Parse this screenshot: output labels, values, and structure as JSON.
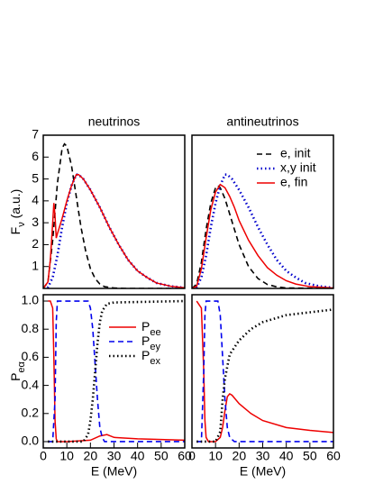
{
  "chart_data": [
    {
      "type": "line",
      "title": "neutrinos",
      "ylabel": "Fν (a.u.)",
      "xlim": [
        0,
        60
      ],
      "ylim": [
        0,
        7
      ],
      "yticks": [
        1,
        2,
        3,
        4,
        5,
        6,
        7
      ],
      "series": [
        {
          "name": "e, init",
          "color": "#000000",
          "dash": "dashed",
          "x": [
            0,
            2,
            4,
            6,
            8,
            9,
            10,
            12,
            14,
            16,
            18,
            20,
            22,
            24,
            26,
            30,
            35,
            40,
            60
          ],
          "values": [
            0,
            0.3,
            2.2,
            4.8,
            6.4,
            6.6,
            6.5,
            5.6,
            4.2,
            2.8,
            1.7,
            0.9,
            0.45,
            0.2,
            0.08,
            0.02,
            0,
            0,
            0
          ]
        },
        {
          "name": "x,y init",
          "color": "#0000cc",
          "dash": "dotted",
          "x": [
            0,
            2,
            4,
            6,
            8,
            10,
            12,
            14,
            15,
            17,
            20,
            24,
            28,
            32,
            36,
            40,
            44,
            48,
            54,
            60
          ],
          "values": [
            0,
            0.05,
            0.5,
            1.5,
            2.8,
            3.9,
            4.7,
            5.2,
            5.2,
            5.0,
            4.5,
            3.7,
            2.8,
            2.0,
            1.3,
            0.8,
            0.5,
            0.25,
            0.1,
            0.03
          ]
        },
        {
          "name": "e, fin",
          "color": "#ee0000",
          "dash": "solid",
          "x": [
            0,
            2,
            3,
            4,
            4.5,
            5,
            5.5,
            6,
            8,
            10,
            12,
            14,
            15,
            17,
            20,
            24,
            28,
            32,
            36,
            40,
            44,
            48,
            54,
            60
          ],
          "values": [
            0,
            0.3,
            1.3,
            3.0,
            3.9,
            3.3,
            2.3,
            2.5,
            3.2,
            4.0,
            4.7,
            5.2,
            5.2,
            5.0,
            4.5,
            3.7,
            2.8,
            2.0,
            1.3,
            0.8,
            0.5,
            0.25,
            0.1,
            0.03
          ]
        }
      ]
    },
    {
      "type": "line",
      "title": "antineutrinos",
      "xlim": [
        0,
        60
      ],
      "ylim": [
        0,
        7
      ],
      "legend": "upper right",
      "series": [
        {
          "name": "e, init",
          "color": "#000000",
          "dash": "dashed",
          "x": [
            0,
            2,
            4,
            6,
            8,
            10,
            11,
            12,
            14,
            16,
            18,
            20,
            24,
            28,
            32,
            36,
            40,
            60
          ],
          "values": [
            0,
            0.2,
            1.2,
            2.7,
            3.9,
            4.6,
            4.7,
            4.6,
            4.1,
            3.4,
            2.7,
            2.0,
            1.0,
            0.45,
            0.18,
            0.07,
            0.02,
            0
          ]
        },
        {
          "name": "x,y init",
          "color": "#0000cc",
          "dash": "dotted",
          "x": [
            0,
            2,
            4,
            6,
            8,
            10,
            12,
            14,
            15,
            17,
            20,
            24,
            28,
            32,
            36,
            40,
            44,
            48,
            54,
            60
          ],
          "values": [
            0,
            0.05,
            0.5,
            1.5,
            2.8,
            3.9,
            4.7,
            5.2,
            5.2,
            5.0,
            4.5,
            3.7,
            2.8,
            2.0,
            1.3,
            0.8,
            0.5,
            0.25,
            0.1,
            0.03
          ]
        },
        {
          "name": "e, fin",
          "color": "#ee0000",
          "dash": "solid",
          "x": [
            0,
            2,
            4,
            6,
            8,
            10,
            12,
            14,
            16,
            18,
            20,
            24,
            28,
            32,
            36,
            40,
            44,
            50,
            60
          ],
          "values": [
            0,
            0.1,
            0.9,
            2.3,
            3.6,
            4.4,
            4.75,
            4.6,
            4.2,
            3.7,
            3.1,
            2.2,
            1.5,
            0.95,
            0.6,
            0.35,
            0.2,
            0.08,
            0.02
          ]
        }
      ]
    },
    {
      "type": "line",
      "ylabel": "Peα",
      "xlabel": "E (MeV)",
      "xlim": [
        0,
        60
      ],
      "ylim": [
        -0.045,
        1.045
      ],
      "xticks": [
        0,
        10,
        20,
        30,
        40,
        50,
        60
      ],
      "yticks": [
        {
          "value": 0,
          "label": "0.0"
        },
        0.2,
        0.4,
        0.6,
        0.8,
        {
          "value": 1,
          "label": "1.0"
        }
      ],
      "legend": "upper right",
      "series": [
        {
          "name": "Pee",
          "color": "#ee0000",
          "dash": "solid",
          "x": [
            2,
            3,
            4,
            4.5,
            5,
            5.5,
            6,
            10,
            20,
            24,
            27,
            30,
            40,
            60
          ],
          "values": [
            1,
            1,
            0.95,
            0.6,
            0.15,
            0.02,
            0,
            0,
            0.01,
            0.04,
            0.05,
            0.03,
            0.02,
            0.01
          ]
        },
        {
          "name": "Pey",
          "color": "#0000ee",
          "dash": "dashed",
          "x": [
            2,
            4,
            5,
            5.5,
            6,
            19,
            20,
            21,
            22,
            23,
            24,
            25,
            26,
            60
          ],
          "values": [
            0,
            0,
            0.3,
            0.85,
            1,
            1,
            0.95,
            0.8,
            0.55,
            0.3,
            0.1,
            0.03,
            0,
            0
          ]
        },
        {
          "name": "Pex",
          "color": "#000000",
          "dash": "dotted",
          "x": [
            2,
            17,
            19,
            20,
            21,
            22,
            23,
            24,
            25,
            27,
            30,
            60
          ],
          "values": [
            0,
            0,
            0.05,
            0.15,
            0.3,
            0.5,
            0.7,
            0.85,
            0.93,
            0.98,
            0.99,
            1
          ]
        }
      ]
    },
    {
      "type": "line",
      "xlabel": "E (MeV)",
      "xlim": [
        0,
        60
      ],
      "ylim": [
        -0.045,
        1.045
      ],
      "xticks": [
        0,
        10,
        20,
        30,
        40,
        50,
        60
      ],
      "series": [
        {
          "name": "Pee",
          "color": "#ee0000",
          "dash": "solid",
          "x": [
            2,
            4,
            5,
            5.5,
            6,
            7,
            10,
            12,
            13,
            14,
            15,
            16,
            17,
            20,
            25,
            30,
            40,
            50,
            60
          ],
          "values": [
            1,
            0.95,
            0.5,
            0.15,
            0.03,
            0,
            0,
            0.03,
            0.1,
            0.22,
            0.32,
            0.34,
            0.33,
            0.27,
            0.2,
            0.15,
            0.1,
            0.08,
            0.065
          ]
        },
        {
          "name": "Pey",
          "color": "#0000ee",
          "dash": "dashed",
          "x": [
            2,
            4,
            5,
            5.5,
            6,
            11,
            12,
            13,
            14,
            15,
            16,
            18,
            60
          ],
          "values": [
            0,
            0,
            0.5,
            0.9,
            1,
            1,
            0.9,
            0.6,
            0.3,
            0.1,
            0.03,
            0,
            0
          ]
        },
        {
          "name": "Pex",
          "color": "#000000",
          "dash": "dotted",
          "x": [
            2,
            10,
            12,
            13,
            14,
            16,
            20,
            25,
            30,
            40,
            50,
            60
          ],
          "values": [
            0,
            0,
            0.07,
            0.3,
            0.45,
            0.62,
            0.72,
            0.8,
            0.85,
            0.9,
            0.92,
            0.94
          ]
        }
      ]
    }
  ]
}
